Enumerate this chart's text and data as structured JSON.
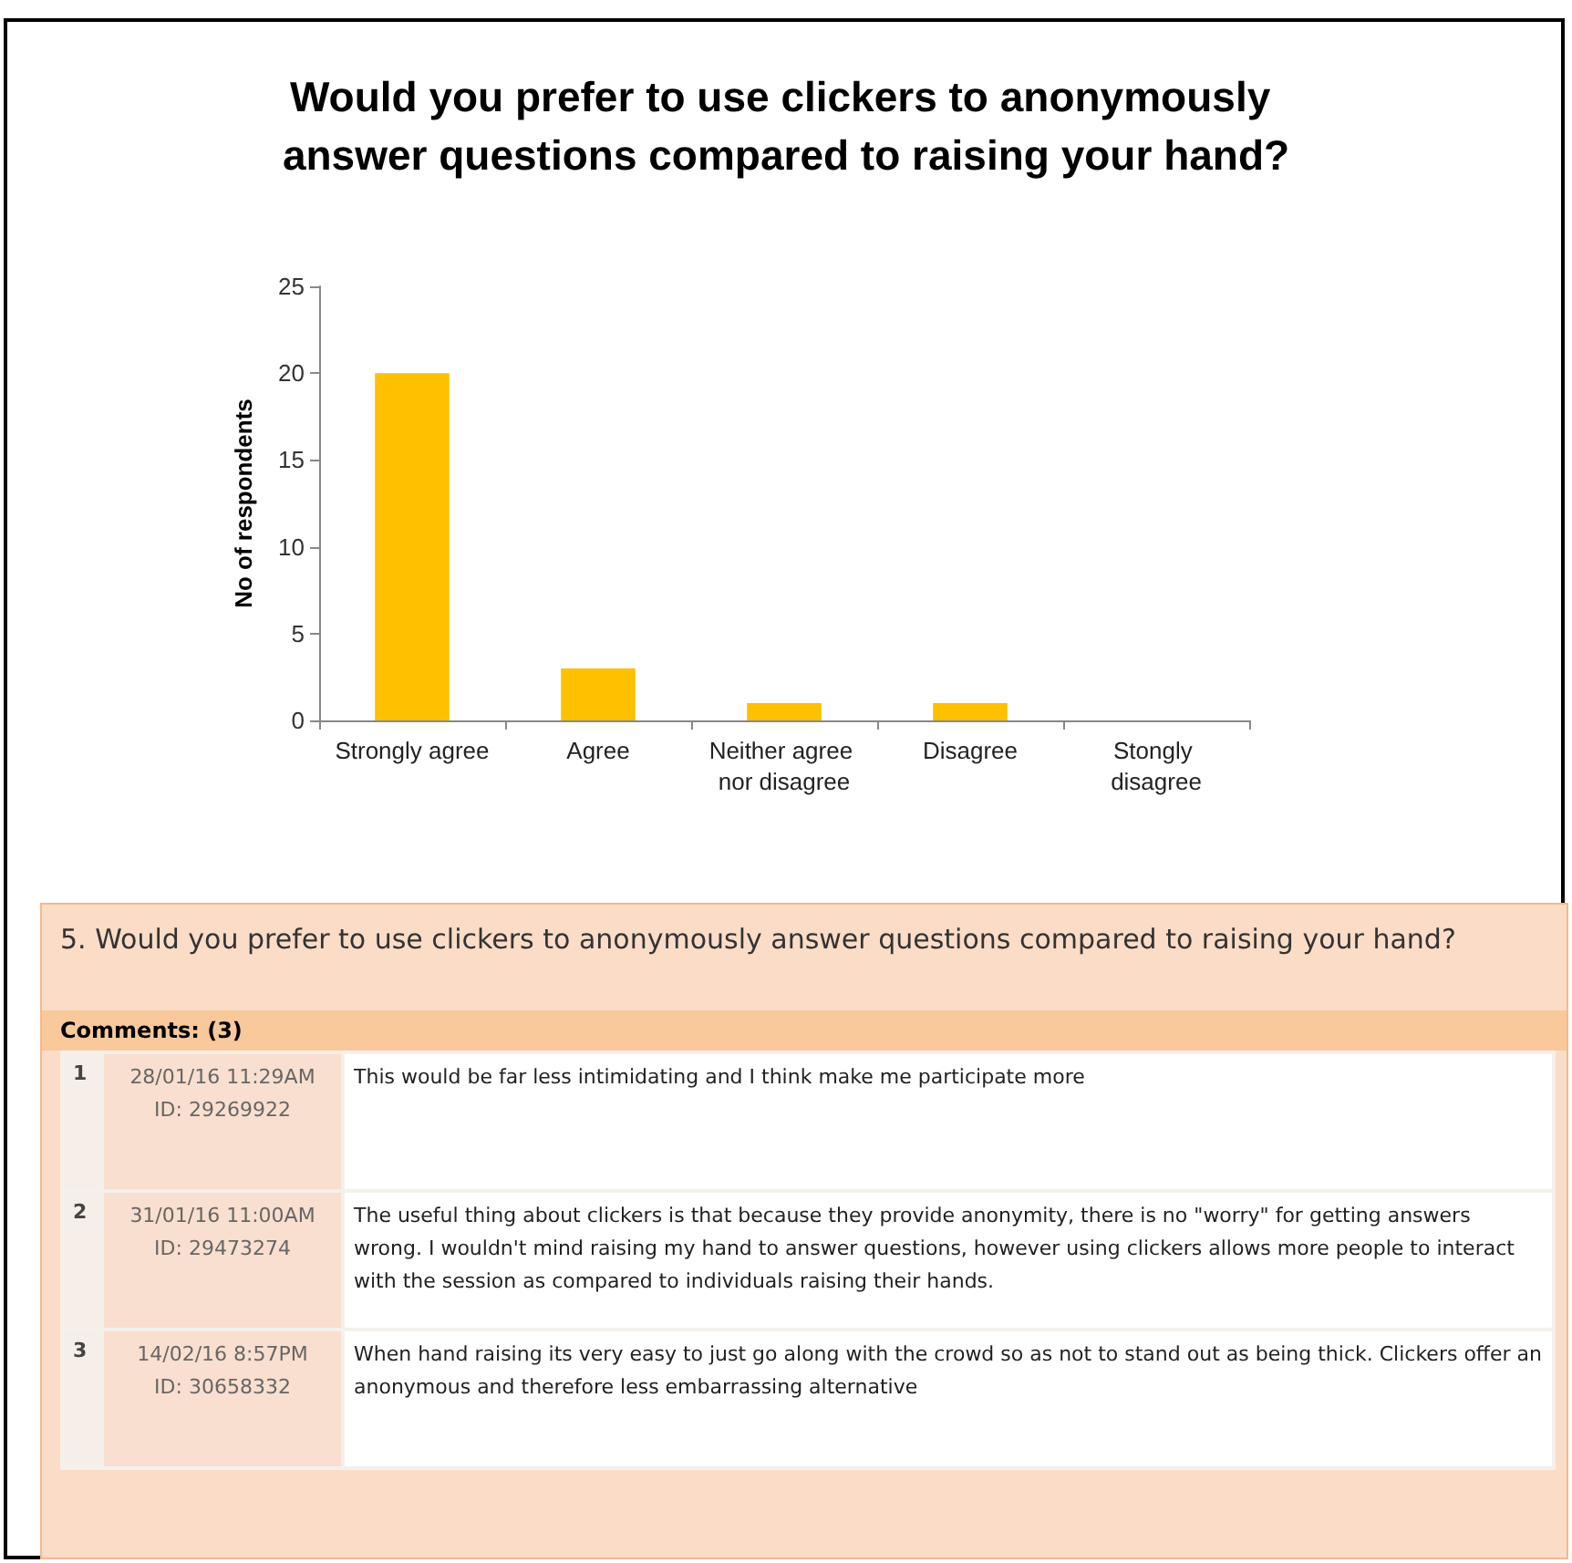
{
  "chart_data": [
    {
      "type": "bar",
      "title": "Would you prefer to use clickers to anonymously answer questions compared to raising your hand?",
      "ylabel": "No of respondents",
      "categories": [
        "Strongly agree",
        "Agree",
        "Neither agree nor disagree",
        "Disagree",
        "Stongly disagree"
      ],
      "values": [
        20,
        3,
        1,
        1,
        0
      ],
      "color": "#ffc000",
      "ylim": [
        0,
        25
      ],
      "yticks": [
        0,
        5,
        10,
        15,
        20,
        25
      ]
    },
    {
      "type": "other",
      "title": "5. Would you prefer to use clickers to anonymously answer questions compared to raising your hand?",
      "annotations": [
        "Comments: (3)",
        "1",
        "28/01/16 11:29AM",
        "ID: 29269922",
        "This would be far less intimidating and I think make me participate more",
        "2",
        "31/01/16 11:00AM",
        "ID: 29473274",
        "The useful thing about clickers is that because they provide anonymity, there is no \"worry\" for getting answers wrong. I wouldn't mind raising my hand to answer questions, however using clickers allows more people to interact with the session as compared to individuals raising their hands.",
        "3",
        "14/02/16 8:57PM",
        "ID: 30658332",
        "When hand raising its very easy to just go along with the crowd so as not to stand out as being thick. Clickers offer an anonymous and therefore less embarrassing alternative"
      ]
    }
  ]
}
